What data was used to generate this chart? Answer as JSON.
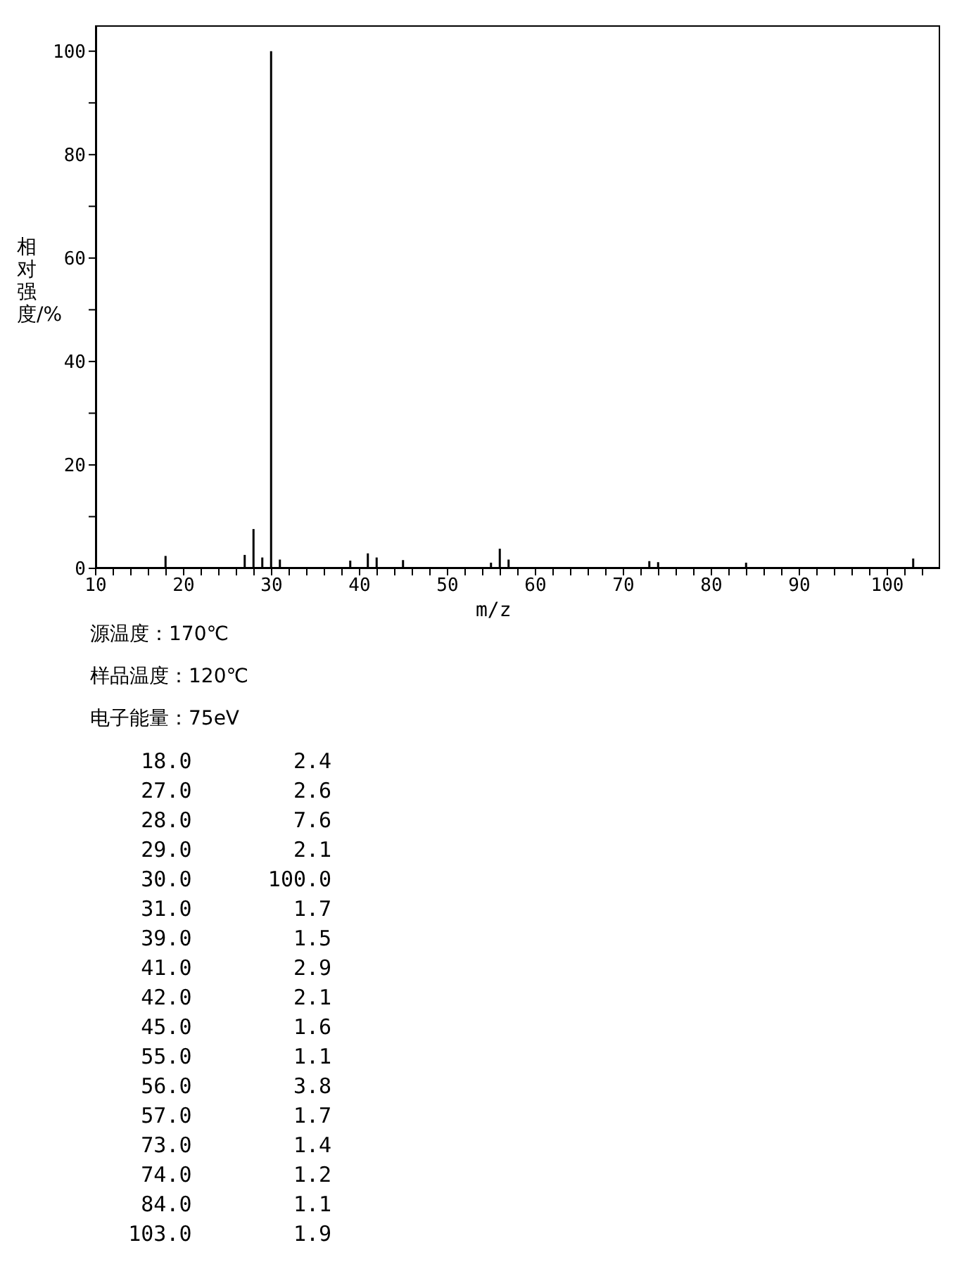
{
  "chart_data": {
    "type": "bar",
    "xlabel": "m/z",
    "ylabel": "相对强度/%",
    "x": [
      18,
      27,
      28,
      29,
      30,
      31,
      39,
      41,
      42,
      45,
      55,
      56,
      57,
      73,
      74,
      84,
      103
    ],
    "values": [
      2.4,
      2.6,
      7.6,
      2.1,
      100,
      1.7,
      1.5,
      2.9,
      2.1,
      1.6,
      1.1,
      3.8,
      1.7,
      1.4,
      1.2,
      1.1,
      1.9
    ],
    "color": "#000000",
    "xlim": [
      10,
      106
    ],
    "xticks": [
      10,
      {
        "value": 12,
        "label": null
      },
      {
        "value": 14,
        "label": null
      },
      {
        "value": 16,
        "label": null
      },
      {
        "value": 18,
        "label": null
      },
      20,
      {
        "value": 22,
        "label": null
      },
      {
        "value": 24,
        "label": null
      },
      {
        "value": 26,
        "label": null
      },
      {
        "value": 28,
        "label": null
      },
      30,
      {
        "value": 32,
        "label": null
      },
      {
        "value": 34,
        "label": null
      },
      {
        "value": 36,
        "label": null
      },
      {
        "value": 38,
        "label": null
      },
      40,
      {
        "value": 42,
        "label": null
      },
      {
        "value": 44,
        "label": null
      },
      {
        "value": 46,
        "label": null
      },
      {
        "value": 48,
        "label": null
      },
      50,
      {
        "value": 52,
        "label": null
      },
      {
        "value": 54,
        "label": null
      },
      {
        "value": 56,
        "label": null
      },
      {
        "value": 58,
        "label": null
      },
      60,
      {
        "value": 62,
        "label": null
      },
      {
        "value": 64,
        "label": null
      },
      {
        "value": 66,
        "label": null
      },
      {
        "value": 68,
        "label": null
      },
      70,
      {
        "value": 72,
        "label": null
      },
      {
        "value": 74,
        "label": null
      },
      {
        "value": 76,
        "label": null
      },
      {
        "value": 78,
        "label": null
      },
      80,
      {
        "value": 82,
        "label": null
      },
      {
        "value": 84,
        "label": null
      },
      {
        "value": 86,
        "label": null
      },
      {
        "value": 88,
        "label": null
      },
      90,
      {
        "value": 92,
        "label": null
      },
      {
        "value": 94,
        "label": null
      },
      {
        "value": 96,
        "label": null
      },
      {
        "value": 98,
        "label": null
      },
      100,
      {
        "value": 102,
        "label": null
      },
      {
        "value": 104,
        "label": null
      }
    ],
    "ylim": [
      0,
      105
    ],
    "yticks": [
      0,
      {
        "value": 10,
        "label": null
      },
      20,
      {
        "value": 30,
        "label": null
      },
      40,
      {
        "value": 50,
        "label": null
      },
      60,
      {
        "value": 70,
        "label": null
      },
      80,
      {
        "value": 90,
        "label": null
      },
      100
    ],
    "grid": false,
    "legend": false,
    "annotations": [
      "源温度：170℃",
      "样品温度：120℃",
      "电子能量：75eV",
      "    18.0        2.4",
      "    27.0        2.6",
      "    28.0        7.6",
      "    29.0        2.1",
      "    30.0      100.0",
      "    31.0        1.7",
      "    39.0        1.5",
      "    41.0        2.9",
      "    42.0        2.1",
      "    45.0        1.6",
      "    55.0        1.1",
      "    56.0        3.8",
      "    57.0        1.7",
      "    73.0        1.4",
      "    74.0        1.2",
      "    84.0        1.1",
      "   103.0        1.9"
    ]
  }
}
